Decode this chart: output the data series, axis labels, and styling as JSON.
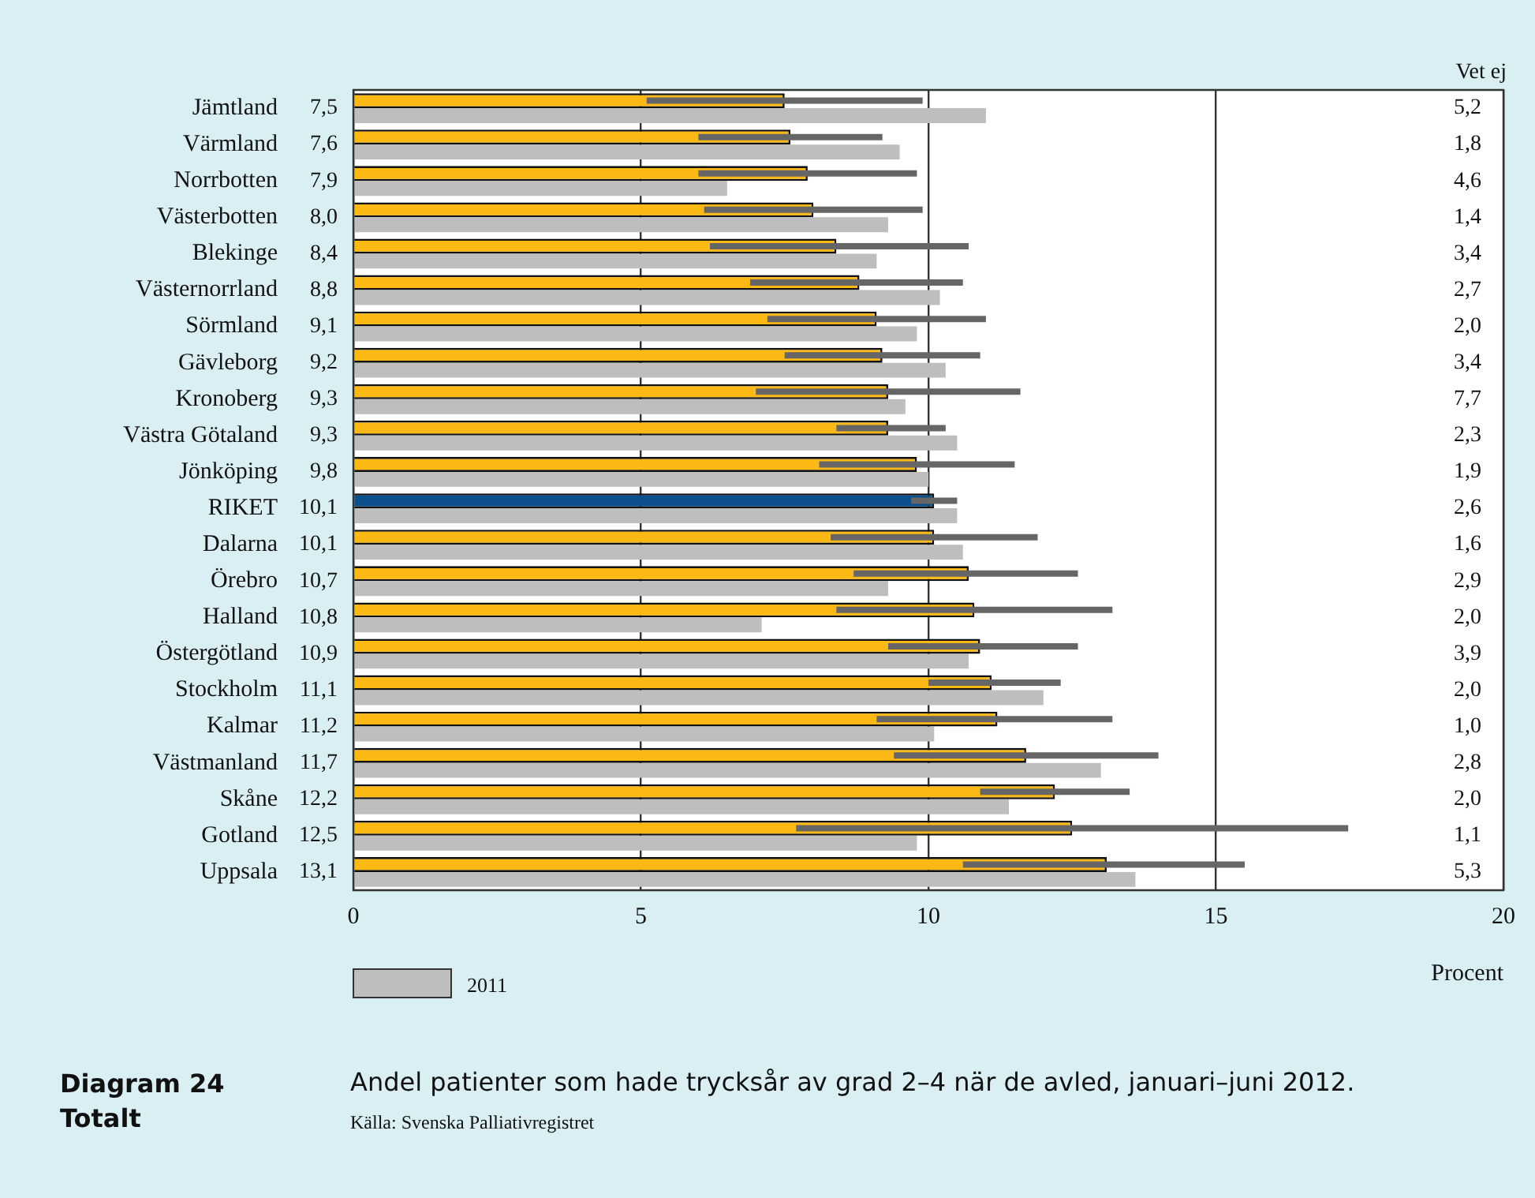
{
  "chart_data": {
    "type": "bar",
    "orientation": "horizontal",
    "title": "Andel patienter som hade trycksår av grad 2–4 när de avled, januari–juni 2012.",
    "xlabel": "Procent",
    "categories": [
      "Jämtland",
      "Värmland",
      "Norrbotten",
      "Västerbotten",
      "Blekinge",
      "Västernorrland",
      "Sörmland",
      "Gävleborg",
      "Kronoberg",
      "Västra Götaland",
      "Jönköping",
      "RIKET",
      "Dalarna",
      "Örebro",
      "Halland",
      "Östergötland",
      "Stockholm",
      "Kalmar",
      "Västmanland",
      "Skåne",
      "Gotland",
      "Uppsala"
    ],
    "series": [
      {
        "colors": [
          "#fdb913",
          "#fdb913",
          "#fdb913",
          "#fdb913",
          "#fdb913",
          "#fdb913",
          "#fdb913",
          "#fdb913",
          "#fdb913",
          "#fdb913",
          "#fdb913",
          "#0b4f8c",
          "#fdb913",
          "#fdb913",
          "#fdb913",
          "#fdb913",
          "#fdb913",
          "#fdb913",
          "#fdb913",
          "#fdb913",
          "#fdb913",
          "#fdb913"
        ],
        "values": [
          7.5,
          7.6,
          7.9,
          8.0,
          8.4,
          8.8,
          9.1,
          9.2,
          9.3,
          9.3,
          9.8,
          10.1,
          10.1,
          10.7,
          10.8,
          10.9,
          11.1,
          11.2,
          11.7,
          12.2,
          12.5,
          13.1
        ],
        "value_labels": [
          "7,5",
          "7,6",
          "7,9",
          "8,0",
          "8,4",
          "8,8",
          "9,1",
          "9,2",
          "9,3",
          "9,3",
          "9,8",
          "10,1",
          "10,1",
          "10,7",
          "10,8",
          "10,9",
          "11,1",
          "11,2",
          "11,7",
          "12,2",
          "12,5",
          "13,1"
        ],
        "errors": [
          [
            5.1,
            9.9
          ],
          [
            6.0,
            9.2
          ],
          [
            6.0,
            9.8
          ],
          [
            6.1,
            9.9
          ],
          [
            6.2,
            10.7
          ],
          [
            6.9,
            10.6
          ],
          [
            7.2,
            11.0
          ],
          [
            7.5,
            10.9
          ],
          [
            7.0,
            11.6
          ],
          [
            8.4,
            10.3
          ],
          [
            8.1,
            11.5
          ],
          [
            9.7,
            10.5
          ],
          [
            8.3,
            11.9
          ],
          [
            8.7,
            12.6
          ],
          [
            8.4,
            13.2
          ],
          [
            9.3,
            12.6
          ],
          [
            10.0,
            12.3
          ],
          [
            9.1,
            13.2
          ],
          [
            9.4,
            14.0
          ],
          [
            10.9,
            13.5
          ],
          [
            7.7,
            17.3
          ],
          [
            10.6,
            15.5
          ]
        ]
      },
      {
        "name": "2011",
        "color": "#bebebe",
        "values": [
          11.0,
          9.5,
          6.5,
          9.3,
          9.1,
          10.2,
          9.8,
          10.3,
          9.6,
          10.5,
          10.0,
          10.5,
          10.6,
          9.3,
          7.1,
          10.7,
          12.0,
          10.1,
          13.0,
          11.4,
          9.8,
          13.6
        ]
      }
    ],
    "xlim": [
      0,
      20
    ],
    "xticks": [
      0,
      5,
      10,
      15,
      20
    ],
    "grid": "x",
    "legend": "bottom left",
    "annotations": [
      "Vet ej",
      "Diagram 24",
      "Totalt",
      "Källa: Svenska Palliativregistret",
      "5,2",
      "1,8",
      "4,6",
      "1,4",
      "3,4",
      "2,7",
      "2,0",
      "3,4",
      "7,7",
      "2,3",
      "1,9",
      "2,6",
      "1,6",
      "2,9",
      "2,0",
      "3,9",
      "2,0",
      "1,0",
      "2,8",
      "2,0",
      "1,1",
      "5,3"
    ]
  }
}
